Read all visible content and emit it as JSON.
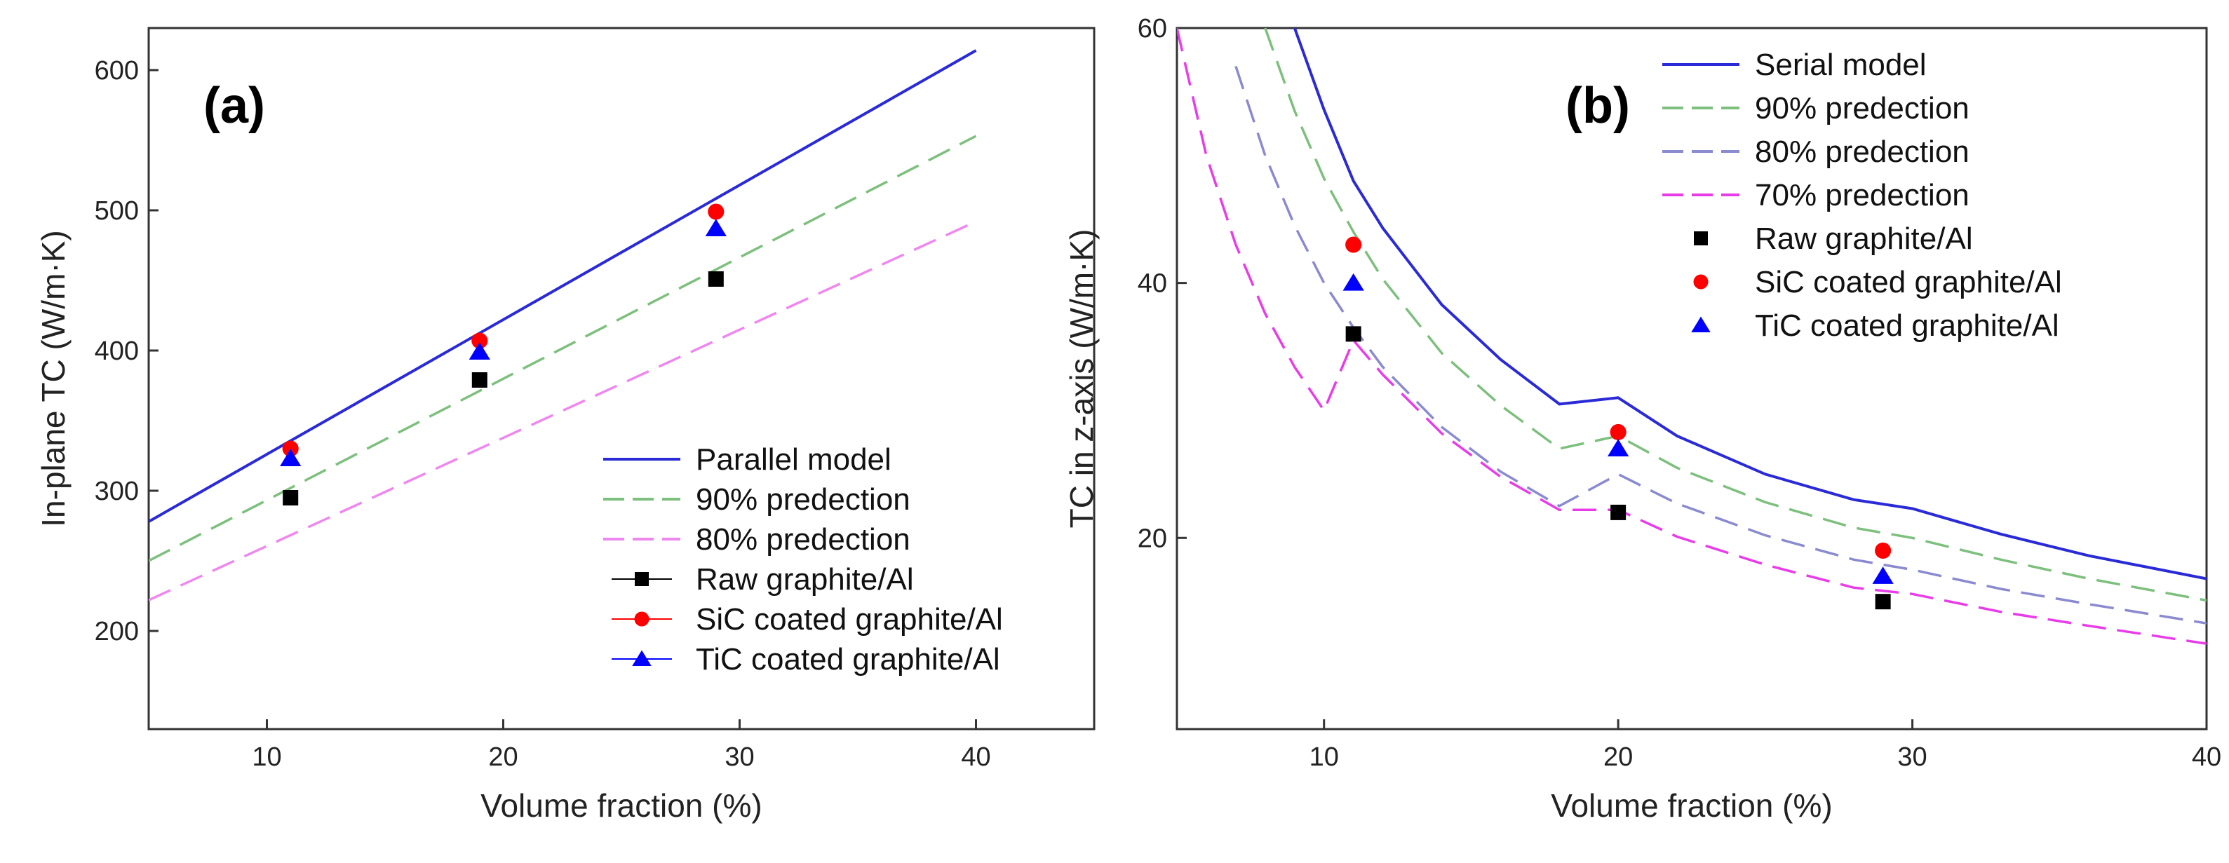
{
  "chart_data": [
    {
      "type": "scatter",
      "panel_label": "(a)",
      "xlabel": "Volume fraction (%)",
      "ylabel": "In-plane TC (W/m·K)",
      "xlim": [
        5,
        45
      ],
      "ylim": [
        130,
        630
      ],
      "x_ticks": [
        10,
        20,
        30,
        40
      ],
      "y_ticks": [
        200,
        300,
        400,
        500,
        600
      ],
      "grid": false,
      "legend_position": "bottom-right",
      "lines": [
        {
          "name": "Parallel model",
          "color": "#2a2ad6",
          "style": "solid",
          "x": [
            5,
            40
          ],
          "y": [
            278,
            614
          ]
        },
        {
          "name": "90% predection",
          "color": "#7dbf7d",
          "style": "dashed",
          "x": [
            5,
            40
          ],
          "y": [
            250,
            553
          ]
        },
        {
          "name": "80% predection",
          "color": "#ee88ee",
          "style": "dashed",
          "x": [
            5,
            40
          ],
          "y": [
            222,
            492
          ]
        }
      ],
      "points": [
        {
          "name": "Raw graphite/Al",
          "color": "#000000",
          "marker": "square",
          "x": [
            11,
            19,
            29
          ],
          "y": [
            295,
            379,
            451
          ]
        },
        {
          "name": "SiC coated graphite/Al",
          "color": "#ff0000",
          "marker": "circle",
          "x": [
            11,
            19,
            29
          ],
          "y": [
            330,
            407,
            499
          ]
        },
        {
          "name": "TiC coated graphite/Al",
          "color": "#0000ff",
          "marker": "triangle",
          "x": [
            11,
            19,
            29
          ],
          "y": [
            323,
            399,
            487
          ]
        }
      ]
    },
    {
      "type": "scatter",
      "panel_label": "(b)",
      "xlabel": "Volume fraction (%)",
      "ylabel": "TC in z-axis (W/m·K)",
      "xlim": [
        5,
        40
      ],
      "ylim": [
        5,
        60
      ],
      "x_ticks": [
        10,
        20,
        30,
        40
      ],
      "y_ticks": [
        20,
        40,
        60
      ],
      "grid": false,
      "legend_position": "top-right",
      "curves": [
        {
          "name": "Serial model",
          "color": "#2a2ad6",
          "style": "solid",
          "x": [
            9,
            10,
            11,
            12,
            14,
            16,
            18,
            20,
            22,
            25,
            28,
            30,
            33,
            36,
            40
          ],
          "y": [
            60,
            53.6,
            48.0,
            44.3,
            38.3,
            34.0,
            30.5,
            31.0,
            28.0,
            25.0,
            23.0,
            22.3,
            20.3,
            18.6,
            16.8
          ]
        },
        {
          "name": "90% predection",
          "color": "#7dbf7d",
          "style": "dashed",
          "x": [
            8,
            9,
            10,
            11,
            12,
            14,
            16,
            18,
            20,
            22,
            25,
            28,
            30,
            33,
            36,
            40
          ],
          "y": [
            60,
            53.5,
            48.2,
            44.0,
            40.3,
            34.5,
            30.4,
            27.0,
            28.0,
            25.5,
            22.8,
            20.8,
            20.0,
            18.3,
            16.8,
            15.1
          ]
        },
        {
          "name": "80% predection",
          "color": "#8a8ad0",
          "style": "dashed",
          "x": [
            7,
            8,
            9,
            10,
            11,
            12,
            14,
            16,
            18,
            20,
            22,
            25,
            28,
            30,
            33,
            36,
            40
          ],
          "y": [
            57,
            50.0,
            44.5,
            40.0,
            36.5,
            33.4,
            28.7,
            25.2,
            22.5,
            25.0,
            22.7,
            20.2,
            18.3,
            17.5,
            16.0,
            14.8,
            13.3
          ]
        },
        {
          "name": "70% predection",
          "color": "#e83ce8",
          "style": "dashed",
          "x": [
            5,
            6,
            7,
            8,
            9,
            10,
            11,
            12,
            14,
            16,
            18,
            20,
            22,
            25,
            28,
            30,
            33,
            36,
            40
          ],
          "y": [
            60,
            50.0,
            43.0,
            37.6,
            33.4,
            30.0,
            35.5,
            32.8,
            28.2,
            24.8,
            22.2,
            22.2,
            20.1,
            17.9,
            16.1,
            15.6,
            14.2,
            13.1,
            11.7
          ]
        }
      ],
      "points": [
        {
          "name": "Raw graphite/Al",
          "color": "#000000",
          "marker": "square",
          "x": [
            11,
            20,
            29
          ],
          "y": [
            36,
            22,
            15
          ]
        },
        {
          "name": "SiC coated graphite/Al",
          "color": "#ff0000",
          "marker": "circle",
          "x": [
            11,
            20,
            29
          ],
          "y": [
            43,
            28.3,
            19
          ]
        },
        {
          "name": "TiC coated graphite/Al",
          "color": "#0000ff",
          "marker": "triangle",
          "x": [
            11,
            20,
            29
          ],
          "y": [
            40,
            27,
            17
          ]
        }
      ]
    }
  ]
}
